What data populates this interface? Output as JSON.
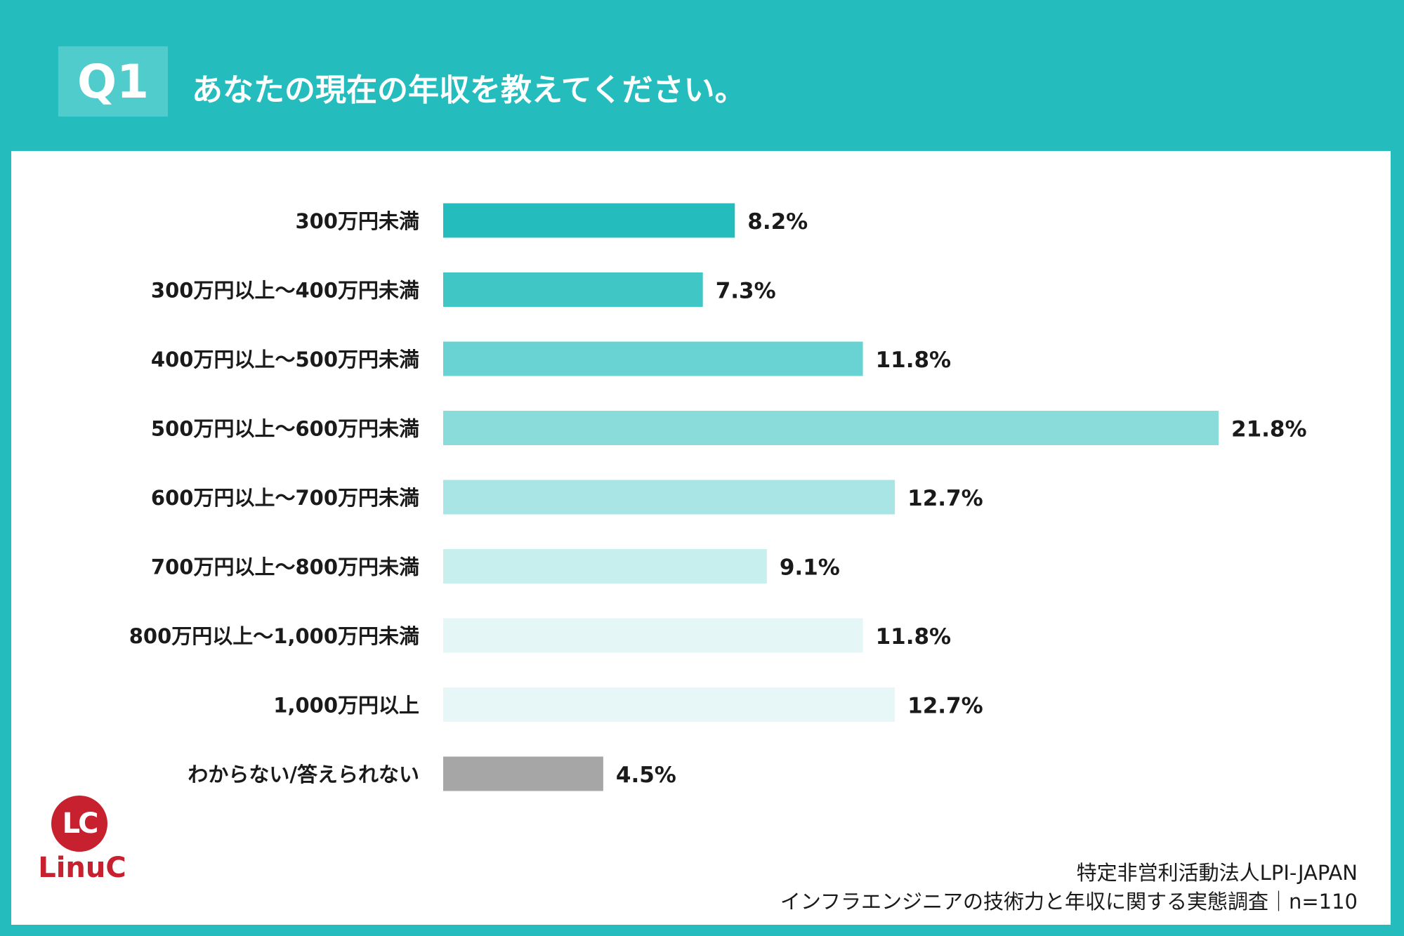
{
  "header": {
    "badge": "Q1",
    "title": "あなたの現在の年収を教えてください。"
  },
  "colors": {
    "header_bg": "#24bcbd",
    "bar_shades": [
      "#24bcbd",
      "#41c6c6",
      "#68d3d2",
      "#8adcdb",
      "#a8e5e4",
      "#c7efee",
      "#e4f6f6",
      "#e7f6f6",
      "#a6a6a6"
    ]
  },
  "chart_data": {
    "type": "bar",
    "orientation": "horizontal",
    "categories": [
      "300万円未満",
      "300万円以上〜400万円未満",
      "400万円以上〜500万円未満",
      "500万円以上〜600万円未満",
      "600万円以上〜700万円未満",
      "700万円以上〜800万円未満",
      "800万円以上〜1,000万円未満",
      "1,000万円以上",
      "わからない/答えられない"
    ],
    "values": [
      8.2,
      7.3,
      11.8,
      21.8,
      12.7,
      9.1,
      11.8,
      12.7,
      4.5
    ],
    "value_labels": [
      "8.2%",
      "7.3%",
      "11.8%",
      "21.8%",
      "12.7%",
      "9.1%",
      "11.8%",
      "12.7%",
      "4.5%"
    ],
    "unit": "%",
    "xlim": [
      0,
      21.8
    ],
    "grid": false,
    "legend": "none"
  },
  "logo": {
    "mark": "LC",
    "name": "LinuC"
  },
  "source": {
    "line1": "特定非営利活動法人LPI-JAPAN",
    "line2": "インフラエンジニアの技術力と年収に関する実態調査｜n=110"
  }
}
